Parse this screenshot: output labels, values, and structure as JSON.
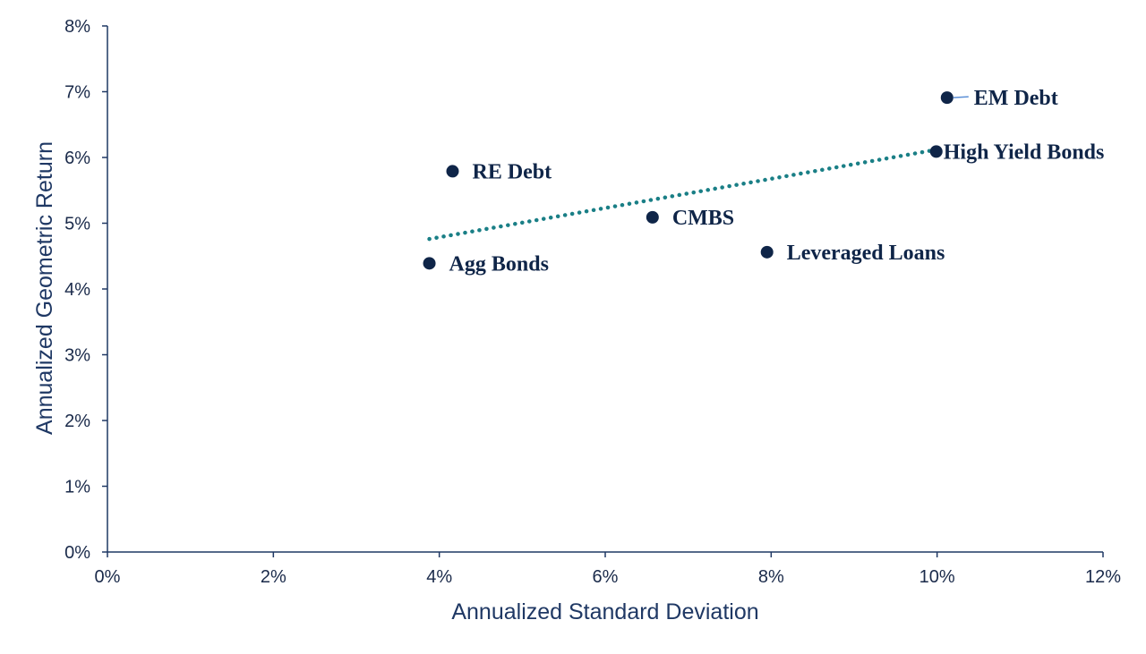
{
  "chart_data": {
    "type": "scatter",
    "xlabel": "Annualized Standard Deviation",
    "ylabel": "Annualized Geometric Return",
    "xlim": [
      0,
      12
    ],
    "ylim": [
      0,
      8
    ],
    "x_ticks": [
      "0%",
      "2%",
      "4%",
      "6%",
      "8%",
      "10%",
      "12%"
    ],
    "y_ticks": [
      "0%",
      "1%",
      "2%",
      "3%",
      "4%",
      "5%",
      "6%",
      "7%",
      "8%"
    ],
    "points": [
      {
        "label": "Agg Bonds",
        "x": 3.88,
        "y": 4.39
      },
      {
        "label": "RE Debt",
        "x": 4.16,
        "y": 5.79
      },
      {
        "label": "CMBS",
        "x": 6.57,
        "y": 5.09
      },
      {
        "label": "Leveraged Loans",
        "x": 7.95,
        "y": 4.56
      },
      {
        "label": "High Yield Bonds",
        "x": 9.99,
        "y": 6.09
      },
      {
        "label": "EM Debt",
        "x": 10.12,
        "y": 6.91
      }
    ],
    "trendline": {
      "style": "dotted",
      "x": [
        3.88,
        10.0
      ],
      "y": [
        4.76,
        6.12
      ]
    },
    "grid": false,
    "legend": "none",
    "colors": {
      "point": "#0f2548",
      "trendline": "#1a7f86",
      "axis": "#1f3864",
      "leader": "#5b8fd6"
    }
  }
}
